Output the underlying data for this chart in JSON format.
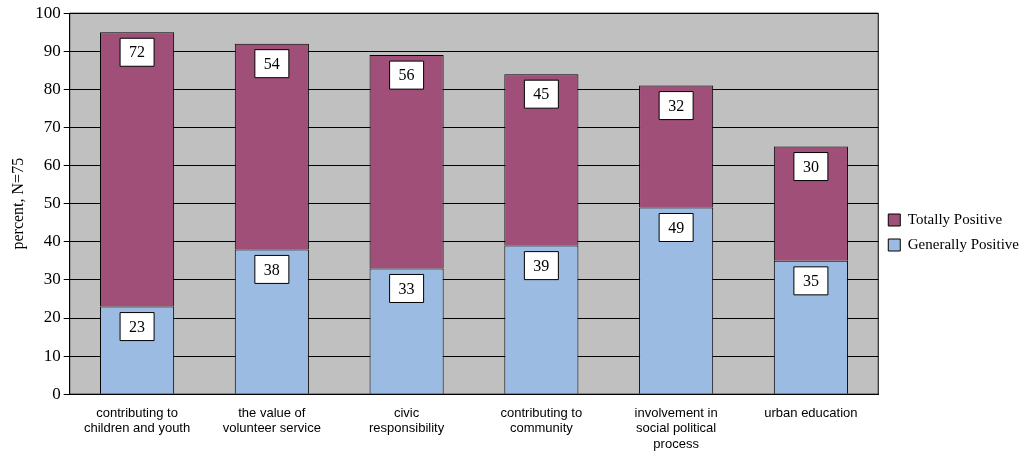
{
  "chart_data": {
    "type": "bar",
    "stacked": true,
    "ylabel": "percent, N=75",
    "categories": [
      "contributing to children and youth",
      "the value of volunteer service",
      "civic responsibility",
      "contributing to community",
      "involvement in social political process",
      "urban education"
    ],
    "series": [
      {
        "name": "Generally Positive",
        "color": "#9bbbe3",
        "values": [
          23,
          38,
          33,
          39,
          49,
          35
        ]
      },
      {
        "name": "Totally Positive",
        "color": "#a04f78",
        "values": [
          72,
          54,
          56,
          45,
          32,
          30
        ]
      }
    ],
    "ylim": [
      0,
      100
    ],
    "yticks": [
      0,
      10,
      20,
      30,
      40,
      50,
      60,
      70,
      80,
      90,
      100
    ],
    "grid": "y",
    "legend": "right",
    "data_labels": true
  }
}
